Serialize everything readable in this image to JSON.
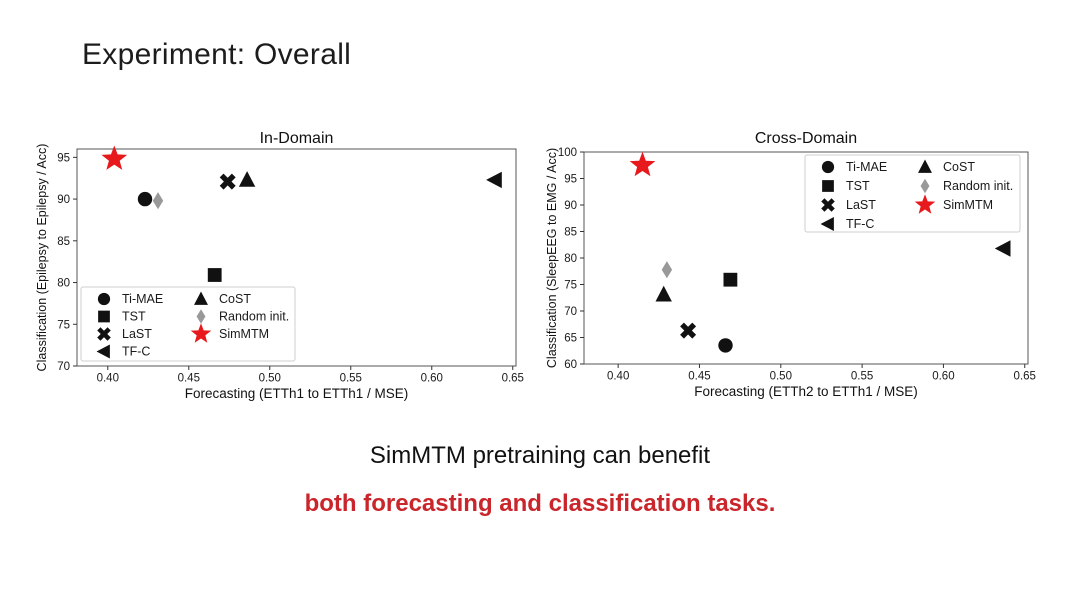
{
  "slide": {
    "title": "Experiment: Overall",
    "conclusion": {
      "line1": "SimMTM pretraining can benefit",
      "line2": "both forecasting and classification tasks.",
      "line1_color": "#111111",
      "line2_color": "#c9252b"
    },
    "accent_red": "#e8191d",
    "marker_black": "#111111",
    "marker_gray": "#999999"
  },
  "chart_data": [
    {
      "type": "scatter",
      "title": "In-Domain",
      "xlabel": "Forecasting (ETTh1 to ETTh1 / MSE)",
      "ylabel": "Classification (Epilepsy to Epilepsy / Acc)",
      "xlim": [
        0.381,
        0.652
      ],
      "ylim": [
        70,
        96
      ],
      "grid": false,
      "xtick_values": [
        0.4,
        0.45,
        0.5,
        0.55,
        0.6,
        0.65
      ],
      "xtick_labels": [
        "0.40",
        "0.45",
        "0.50",
        "0.55",
        "0.60",
        "0.65"
      ],
      "ytick_values": [
        70,
        75,
        80,
        85,
        90,
        95
      ],
      "ytick_labels": [
        "70",
        "75",
        "80",
        "85",
        "90",
        "95"
      ],
      "legend_position": "lower-left",
      "legend_columns": [
        [
          "Ti-MAE",
          "TST",
          "LaST",
          "TF-C"
        ],
        [
          "CoST",
          "Random init.",
          "SimMTM"
        ]
      ],
      "series": [
        {
          "name": "Ti-MAE",
          "marker": "circle",
          "color": "#111111",
          "points": [
            [
              0.423,
              90.0
            ]
          ]
        },
        {
          "name": "TST",
          "marker": "square",
          "color": "#111111",
          "points": [
            [
              0.466,
              80.9
            ]
          ]
        },
        {
          "name": "LaST",
          "marker": "x",
          "color": "#111111",
          "points": [
            [
              0.474,
              92.1
            ]
          ]
        },
        {
          "name": "TF-C",
          "marker": "triangle-left",
          "color": "#111111",
          "points": [
            [
              0.639,
              92.3
            ]
          ]
        },
        {
          "name": "CoST",
          "marker": "triangle-up",
          "color": "#111111",
          "points": [
            [
              0.486,
              92.3
            ]
          ]
        },
        {
          "name": "Random init.",
          "marker": "diamond",
          "color": "#999999",
          "points": [
            [
              0.431,
              89.8
            ]
          ]
        },
        {
          "name": "SimMTM",
          "marker": "star",
          "color": "#e8191d",
          "points": [
            [
              0.404,
              94.8
            ]
          ]
        }
      ]
    },
    {
      "type": "scatter",
      "title": "Cross-Domain",
      "xlabel": "Forecasting (ETTh2 to ETTh1 / MSE)",
      "ylabel": "Classification (SleepEEG to EMG / Acc)",
      "xlim": [
        0.379,
        0.652
      ],
      "ylim": [
        60,
        100
      ],
      "grid": false,
      "xtick_values": [
        0.4,
        0.45,
        0.5,
        0.55,
        0.6,
        0.65
      ],
      "xtick_labels": [
        "0.40",
        "0.45",
        "0.50",
        "0.55",
        "0.60",
        "0.65"
      ],
      "ytick_values": [
        60,
        65,
        70,
        75,
        80,
        85,
        90,
        95,
        100
      ],
      "ytick_labels": [
        "60",
        "65",
        "70",
        "75",
        "80",
        "85",
        "90",
        "95",
        "100"
      ],
      "legend_position": "upper-right",
      "legend_columns": [
        [
          "Ti-MAE",
          "TST",
          "LaST",
          "TF-C"
        ],
        [
          "CoST",
          "Random init.",
          "SimMTM"
        ]
      ],
      "series": [
        {
          "name": "Ti-MAE",
          "marker": "circle",
          "color": "#111111",
          "points": [
            [
              0.466,
              63.5
            ]
          ]
        },
        {
          "name": "TST",
          "marker": "square",
          "color": "#111111",
          "points": [
            [
              0.469,
              75.9
            ]
          ]
        },
        {
          "name": "LaST",
          "marker": "x",
          "color": "#111111",
          "points": [
            [
              0.443,
              66.3
            ]
          ]
        },
        {
          "name": "TF-C",
          "marker": "triangle-left",
          "color": "#111111",
          "points": [
            [
              0.637,
              81.8
            ]
          ]
        },
        {
          "name": "CoST",
          "marker": "triangle-up",
          "color": "#111111",
          "points": [
            [
              0.428,
              73.1
            ]
          ]
        },
        {
          "name": "Random init.",
          "marker": "diamond",
          "color": "#999999",
          "points": [
            [
              0.43,
              77.8
            ]
          ]
        },
        {
          "name": "SimMTM",
          "marker": "star",
          "color": "#e8191d",
          "points": [
            [
              0.415,
              97.5
            ]
          ]
        }
      ]
    }
  ]
}
